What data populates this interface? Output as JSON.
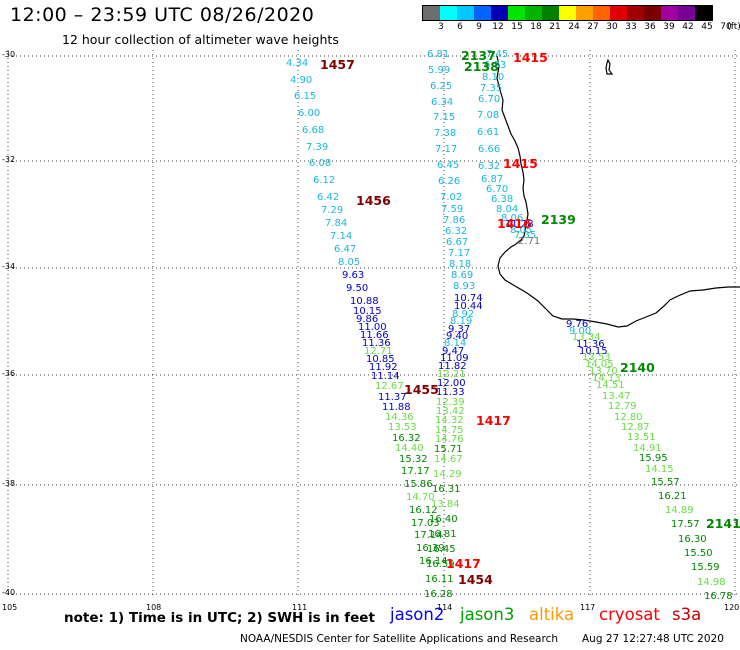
{
  "header": {
    "title": "12:00 – 23:59 UTC 08/26/2020",
    "subtitle": "12 hour collection of altimeter wave heights"
  },
  "legend": {
    "ticks": [
      "3",
      "6",
      "9",
      "12",
      "15",
      "18",
      "21",
      "24",
      "27",
      "30",
      "33",
      "36",
      "39",
      "42",
      "45",
      "70",
      "(ft)"
    ],
    "colors": [
      "#6e6e6e",
      "#00ffff",
      "#00c8ff",
      "#0064ff",
      "#0000b4",
      "#00e600",
      "#00b400",
      "#008200",
      "#ffff00",
      "#ffa000",
      "#ff6400",
      "#e10000",
      "#a00000",
      "#780000",
      "#a000a0",
      "#780096",
      "#000000"
    ]
  },
  "axes": {
    "lat_labels": [
      "-30",
      "-32",
      "-34",
      "-36",
      "-38",
      "-40"
    ],
    "lon_labels": [
      "105",
      "108",
      "111",
      "114",
      "117",
      "120"
    ]
  },
  "colors": {
    "cyan": "#1ab8d8",
    "blue": "#0000c8",
    "lightgreen": "#66dd44",
    "green": "#008800",
    "red": "#ff0000",
    "maroon": "#800000",
    "gray": "#707070"
  },
  "coastline_name": "Western Australia coastline",
  "track_a": [
    {
      "v": "4.34",
      "c": "cyan"
    },
    {
      "v": "4.90",
      "c": "cyan"
    },
    {
      "v": "6.15",
      "c": "cyan"
    },
    {
      "v": "6.00",
      "c": "cyan"
    },
    {
      "v": "6.68",
      "c": "cyan"
    },
    {
      "v": "7.39",
      "c": "cyan"
    },
    {
      "v": "6.08",
      "c": "cyan"
    },
    {
      "v": "6.12",
      "c": "cyan"
    },
    {
      "v": "6.42",
      "c": "cyan"
    },
    {
      "v": "7.29",
      "c": "cyan"
    },
    {
      "v": "7.84",
      "c": "cyan"
    },
    {
      "v": "7.14",
      "c": "cyan"
    },
    {
      "v": "6.47",
      "c": "cyan"
    },
    {
      "v": "8.05",
      "c": "cyan"
    },
    {
      "v": "9.63",
      "c": "blue"
    },
    {
      "v": "9.50",
      "c": "blue"
    },
    {
      "v": "10.88",
      "c": "blue"
    },
    {
      "v": "10.15",
      "c": "blue"
    },
    {
      "v": "9.86",
      "c": "blue"
    },
    {
      "v": "11.00",
      "c": "blue"
    },
    {
      "v": "11.66",
      "c": "blue"
    },
    {
      "v": "11.36",
      "c": "blue"
    },
    {
      "v": "12.71",
      "c": "lightgreen"
    },
    {
      "v": "10.85",
      "c": "blue"
    },
    {
      "v": "11.92",
      "c": "blue"
    },
    {
      "v": "11.14",
      "c": "blue"
    },
    {
      "v": "12.67",
      "c": "lightgreen"
    },
    {
      "v": "11.37",
      "c": "blue"
    },
    {
      "v": "11.88",
      "c": "blue"
    },
    {
      "v": "14.36",
      "c": "lightgreen"
    },
    {
      "v": "13.53",
      "c": "lightgreen"
    },
    {
      "v": "16.32",
      "c": "green"
    },
    {
      "v": "14.40",
      "c": "lightgreen"
    },
    {
      "v": "15.32",
      "c": "green"
    },
    {
      "v": "17.17",
      "c": "green"
    },
    {
      "v": "15.86",
      "c": "green"
    },
    {
      "v": "14.70",
      "c": "lightgreen"
    },
    {
      "v": "16.12",
      "c": "green"
    },
    {
      "v": "17.03",
      "c": "green"
    },
    {
      "v": "17.14",
      "c": "green"
    },
    {
      "v": "16.39",
      "c": "green"
    },
    {
      "v": "16.14",
      "c": "green"
    }
  ],
  "track_b": [
    {
      "v": "6.81",
      "c": "cyan"
    },
    {
      "v": "5.99",
      "c": "cyan"
    },
    {
      "v": "6.25",
      "c": "cyan"
    },
    {
      "v": "6.34",
      "c": "cyan"
    },
    {
      "v": "7.15",
      "c": "cyan"
    },
    {
      "v": "7.38",
      "c": "cyan"
    },
    {
      "v": "7.17",
      "c": "cyan"
    },
    {
      "v": "6.45",
      "c": "cyan"
    },
    {
      "v": "6.26",
      "c": "cyan"
    },
    {
      "v": "7.02",
      "c": "cyan"
    },
    {
      "v": "7.59",
      "c": "cyan"
    },
    {
      "v": "7.86",
      "c": "cyan"
    },
    {
      "v": "6.32",
      "c": "cyan"
    },
    {
      "v": "6.67",
      "c": "cyan"
    },
    {
      "v": "7.17",
      "c": "cyan"
    },
    {
      "v": "8.18",
      "c": "cyan"
    },
    {
      "v": "8.69",
      "c": "cyan"
    },
    {
      "v": "8.93",
      "c": "cyan"
    },
    {
      "v": "10.74",
      "c": "blue"
    },
    {
      "v": "10.44",
      "c": "blue"
    },
    {
      "v": "8.92",
      "c": "cyan"
    },
    {
      "v": "8.19",
      "c": "cyan"
    },
    {
      "v": "9.37",
      "c": "blue"
    },
    {
      "v": "9.40",
      "c": "blue"
    },
    {
      "v": "8.14",
      "c": "cyan"
    },
    {
      "v": "9.47",
      "c": "blue"
    },
    {
      "v": "11.09",
      "c": "blue"
    },
    {
      "v": "11.82",
      "c": "blue"
    },
    {
      "v": "12.21",
      "c": "lightgreen"
    },
    {
      "v": "12.00",
      "c": "blue"
    },
    {
      "v": "11.33",
      "c": "blue"
    },
    {
      "v": "12.39",
      "c": "lightgreen"
    },
    {
      "v": "13.42",
      "c": "lightgreen"
    },
    {
      "v": "14.32",
      "c": "lightgreen"
    },
    {
      "v": "14.75",
      "c": "lightgreen"
    },
    {
      "v": "14.76",
      "c": "lightgreen"
    },
    {
      "v": "15.71",
      "c": "green"
    },
    {
      "v": "14.67",
      "c": "lightgreen"
    },
    {
      "v": "14.29",
      "c": "lightgreen"
    },
    {
      "v": "16.31",
      "c": "green"
    },
    {
      "v": "13.84",
      "c": "lightgreen"
    },
    {
      "v": "16.40",
      "c": "green"
    },
    {
      "v": "16.81",
      "c": "green"
    },
    {
      "v": "16.45",
      "c": "green"
    },
    {
      "v": "16.59",
      "c": "green"
    },
    {
      "v": "16.11",
      "c": "green"
    },
    {
      "v": "16.28",
      "c": "green"
    }
  ],
  "track_c": [
    {
      "v": "7.45",
      "c": "cyan"
    },
    {
      "v": "6.83",
      "c": "cyan"
    },
    {
      "v": "8.10",
      "c": "cyan"
    },
    {
      "v": "7.35",
      "c": "cyan"
    },
    {
      "v": "6.70",
      "c": "cyan"
    },
    {
      "v": "7.08",
      "c": "cyan"
    },
    {
      "v": "6.61",
      "c": "cyan"
    },
    {
      "v": "6.66",
      "c": "cyan"
    },
    {
      "v": "6.32",
      "c": "cyan"
    },
    {
      "v": "6.87",
      "c": "cyan"
    },
    {
      "v": "6.70",
      "c": "cyan"
    },
    {
      "v": "6.38",
      "c": "cyan"
    },
    {
      "v": "8.04",
      "c": "cyan"
    },
    {
      "v": "8.06",
      "c": "cyan"
    },
    {
      "v": "11.28",
      "c": "blue"
    },
    {
      "v": "8.05",
      "c": "cyan"
    },
    {
      "v": "7.35",
      "c": "cyan"
    },
    {
      "v": "2.71",
      "c": "gray"
    }
  ],
  "track_d": [
    {
      "v": "9.76",
      "c": "blue"
    },
    {
      "v": "9.00",
      "c": "cyan"
    },
    {
      "v": "13.34",
      "c": "lightgreen"
    },
    {
      "v": "11.36",
      "c": "blue"
    },
    {
      "v": "10.15",
      "c": "blue"
    },
    {
      "v": "13.53",
      "c": "lightgreen"
    },
    {
      "v": "14.05",
      "c": "lightgreen"
    },
    {
      "v": "13.70",
      "c": "lightgreen"
    },
    {
      "v": "14.13",
      "c": "lightgreen"
    },
    {
      "v": "14.51",
      "c": "lightgreen"
    },
    {
      "v": "13.47",
      "c": "lightgreen"
    },
    {
      "v": "12.79",
      "c": "lightgreen"
    },
    {
      "v": "12.80",
      "c": "lightgreen"
    },
    {
      "v": "12.87",
      "c": "lightgreen"
    },
    {
      "v": "13.51",
      "c": "lightgreen"
    },
    {
      "v": "14.91",
      "c": "lightgreen"
    },
    {
      "v": "15.95",
      "c": "green"
    },
    {
      "v": "14.15",
      "c": "lightgreen"
    },
    {
      "v": "15.57",
      "c": "green"
    },
    {
      "v": "16.21",
      "c": "green"
    },
    {
      "v": "14.89",
      "c": "lightgreen"
    },
    {
      "v": "17.57",
      "c": "green"
    },
    {
      "v": "16.30",
      "c": "green"
    },
    {
      "v": "15.50",
      "c": "green"
    },
    {
      "v": "15.59",
      "c": "green"
    },
    {
      "v": "14.98",
      "c": "lightgreen"
    },
    {
      "v": "16.78",
      "c": "green"
    }
  ],
  "pass_labels": [
    {
      "text": "1457",
      "c": "maroon"
    },
    {
      "text": "1456",
      "c": "maroon"
    },
    {
      "text": "1455",
      "c": "maroon"
    },
    {
      "text": "1454",
      "c": "maroon"
    },
    {
      "text": "2137",
      "c": "green"
    },
    {
      "text": "2138",
      "c": "green"
    },
    {
      "text": "2139",
      "c": "green"
    },
    {
      "text": "2140",
      "c": "green"
    },
    {
      "text": "2141",
      "c": "green"
    },
    {
      "text": "1415",
      "c": "red"
    },
    {
      "text": "1415",
      "c": "red"
    },
    {
      "text": "1416",
      "c": "red"
    },
    {
      "text": "1417",
      "c": "red"
    },
    {
      "text": "1417",
      "c": "red"
    }
  ],
  "footer": {
    "note": "note: 1) Time is in UTC; 2) SWH is in feet",
    "credit": "NOAA/NESDIS Center for Satellite Applications and Research",
    "timestamp": "Aug 27 12:27:48 UTC 2020"
  },
  "satellites": [
    {
      "name": "jason2",
      "color": "#0000ff"
    },
    {
      "name": "jason3",
      "color": "#00a000"
    },
    {
      "name": "altika",
      "color": "#ff9900"
    },
    {
      "name": "cryosat",
      "color": "#ff0000"
    },
    {
      "name": "s3a",
      "color": "#c80000"
    }
  ]
}
